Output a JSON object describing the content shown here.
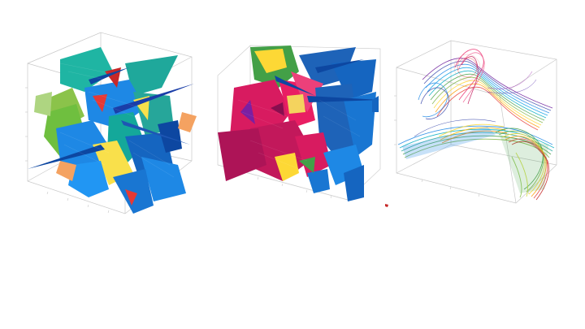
{
  "figure": {
    "panels": [
      {
        "id": "panel-1",
        "content": "multicolor-polygonal-planes",
        "palette": [
          "#1fb5a3",
          "#1e88e5",
          "#0d47a1",
          "#8bc34a",
          "#f9e04b",
          "#f4a261",
          "#e53935"
        ]
      },
      {
        "id": "panel-2",
        "content": "pink-blue-polygonal-surfaces",
        "palette": [
          "#d81b60",
          "#1e63b8",
          "#43a047",
          "#f4d35e",
          "#7b1fa2"
        ]
      },
      {
        "id": "panel-3",
        "content": "rainbow-streamline-bundles",
        "palette": [
          "#e53935",
          "#ff9800",
          "#fdd835",
          "#43a047",
          "#1e88e5",
          "#6a1b9a"
        ]
      }
    ],
    "stray_marker_color": "#c62828"
  }
}
